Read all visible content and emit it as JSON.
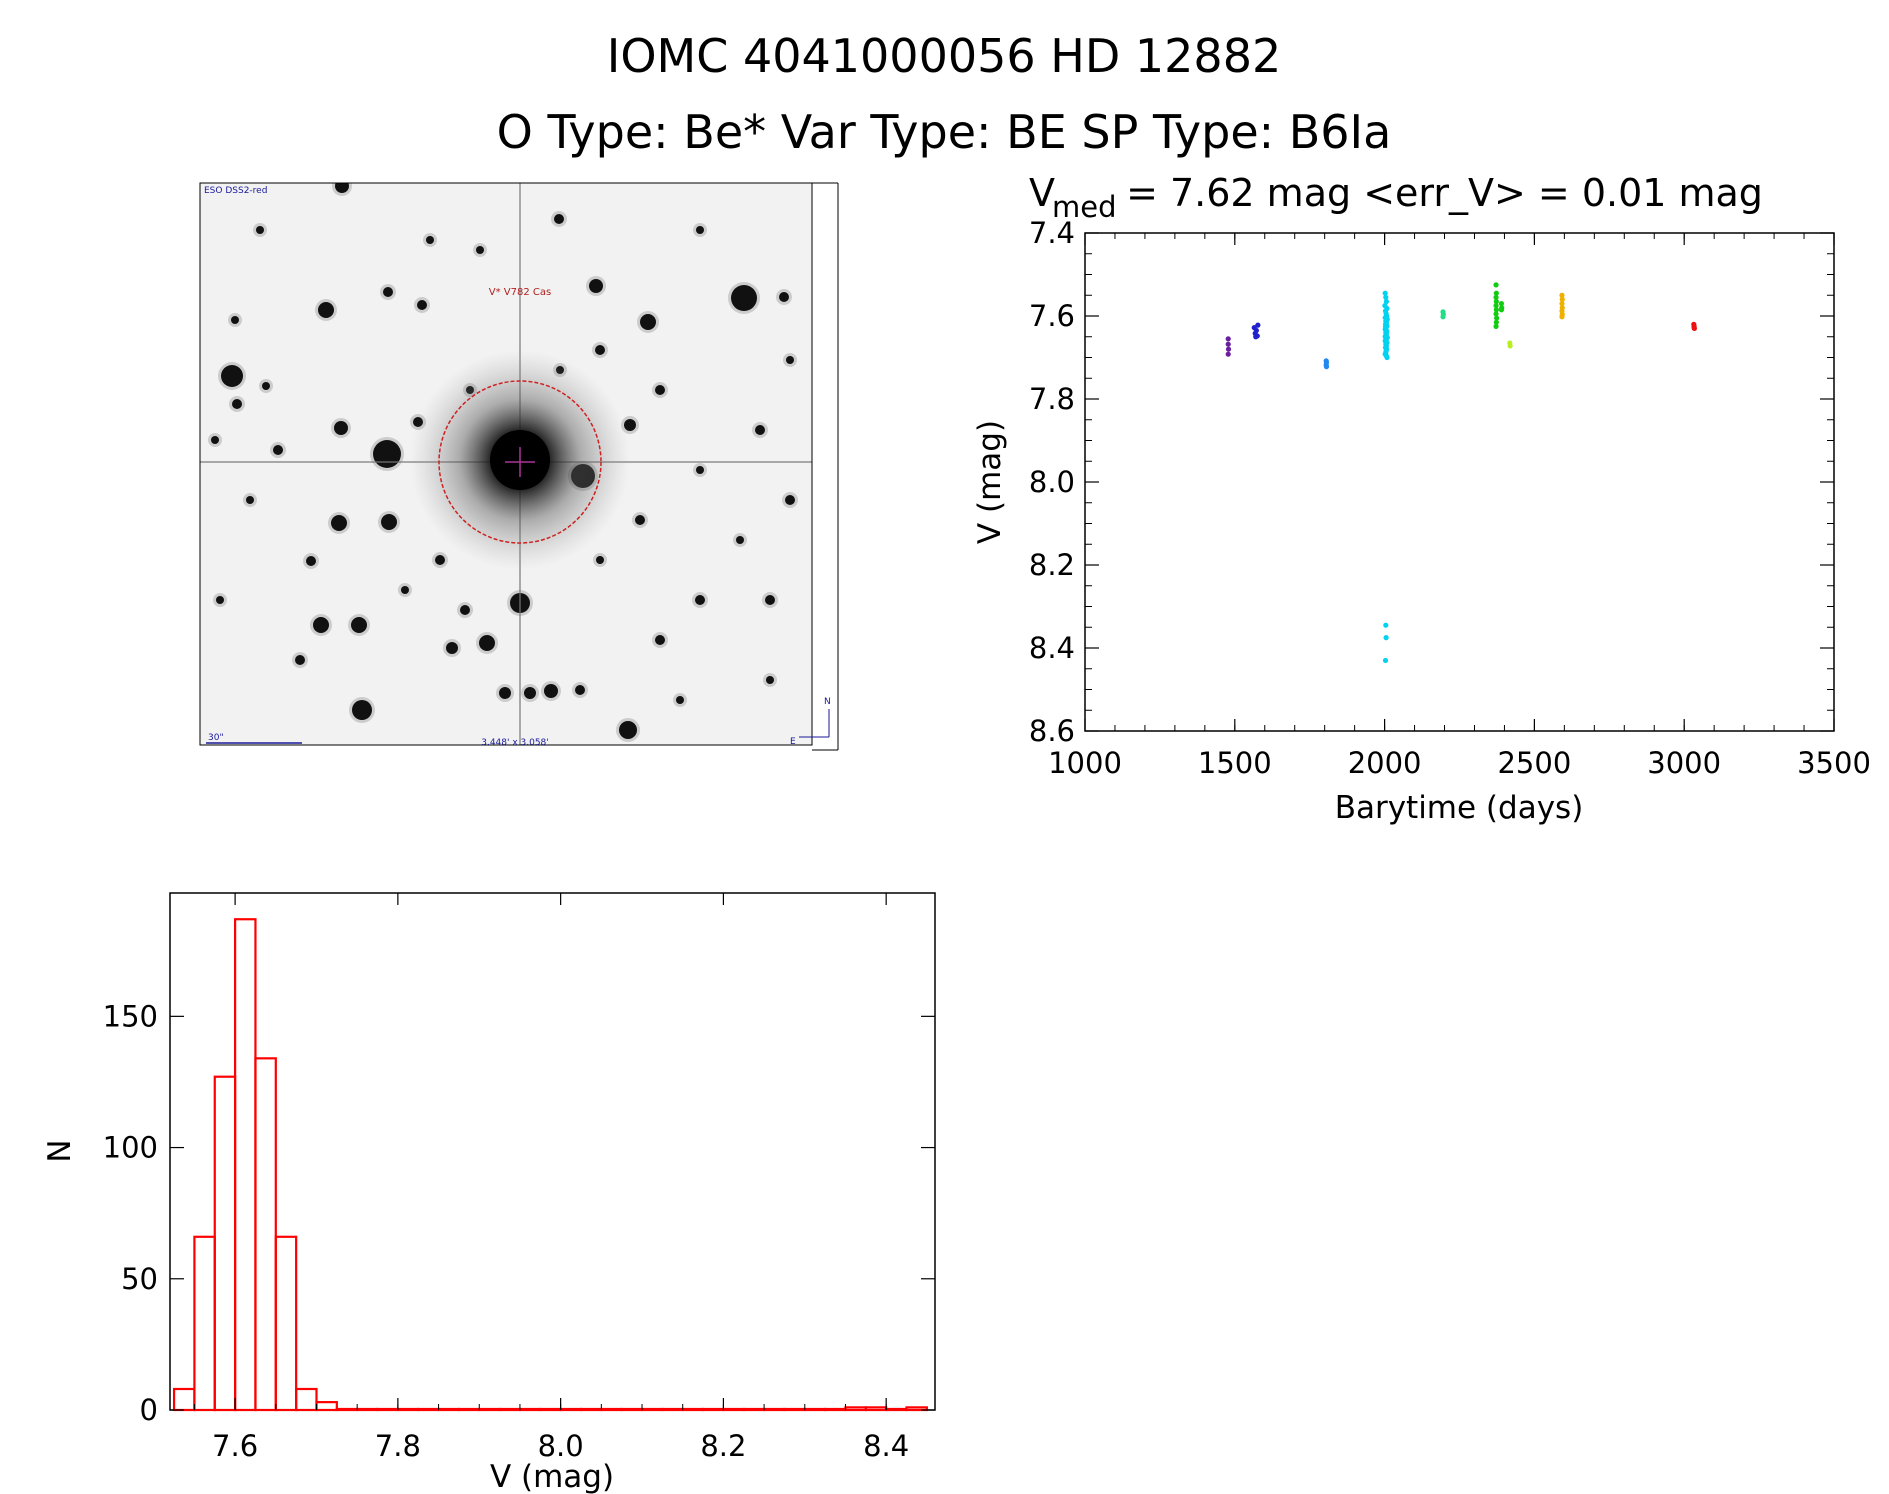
{
  "header": {
    "line1": "IOMC 4041000056   HD  12882",
    "line2": "O Type: Be*  Var Type: BE  SP Type: B6Ia"
  },
  "finder": {
    "survey_label": "ESO DSS2-red",
    "object_label": "V* V782 Cas",
    "scale_label": "30\"",
    "fov_label": "3.448' x 3.058'",
    "north_label": "N",
    "east_label": "E"
  },
  "chart_data": [
    {
      "type": "scatter",
      "title_main": "V",
      "title_sub": "med",
      "title_rest": " = 7.62 mag <err_V> = 0.01 mag",
      "xlabel": "Barytime (days)",
      "ylabel": "V (mag)",
      "xlim": [
        1000,
        3500
      ],
      "ylim": [
        8.6,
        7.4
      ],
      "y_inverted": true,
      "xticks": [
        "1000",
        "1500",
        "2000",
        "2500",
        "3000",
        "3500"
      ],
      "yticks": [
        "7.4",
        "7.6",
        "7.8",
        "8.0",
        "8.2",
        "8.4",
        "8.6"
      ],
      "grid": false,
      "series": [
        {
          "color": "#6a1fa0",
          "x": [
            1478,
            1478,
            1479,
            1478
          ],
          "y": [
            7.655,
            7.668,
            7.68,
            7.692
          ]
        },
        {
          "color": "#2222cc",
          "x": [
            1565,
            1572,
            1568,
            1575,
            1570,
            1577
          ],
          "y": [
            7.628,
            7.635,
            7.642,
            7.648,
            7.65,
            7.622
          ]
        },
        {
          "color": "#2288ee",
          "x": [
            1805,
            1806,
            1805,
            1806
          ],
          "y": [
            7.708,
            7.712,
            7.718,
            7.722
          ]
        },
        {
          "color": "#00d2f0",
          "x": [
            2002,
            2004,
            2006,
            2001,
            2008,
            2003,
            2005,
            2007,
            2002,
            2009,
            2004,
            2006,
            2003,
            2008,
            2005,
            2002,
            2007,
            2004,
            2006,
            2003,
            2009,
            2005,
            2002,
            2008,
            2004,
            2006,
            2003,
            2007,
            2005,
            2004,
            2002,
            2006,
            2008,
            2004,
            2005,
            2003,
            2007,
            2002,
            2006,
            2004,
            2005,
            2003
          ],
          "y": [
            7.545,
            7.555,
            7.565,
            7.575,
            7.582,
            7.588,
            7.594,
            7.6,
            7.604,
            7.608,
            7.612,
            7.616,
            7.62,
            7.624,
            7.628,
            7.632,
            7.636,
            7.64,
            7.644,
            7.648,
            7.652,
            7.656,
            7.66,
            7.664,
            7.668,
            7.672,
            7.676,
            7.68,
            7.684,
            7.688,
            7.692,
            7.696,
            7.7,
            7.604,
            7.614,
            7.626,
            7.638,
            7.65,
            7.662,
            8.345,
            8.375,
            8.43
          ]
        },
        {
          "color": "#22dd88",
          "x": [
            2195,
            2196,
            2195
          ],
          "y": [
            7.59,
            7.596,
            7.602
          ]
        },
        {
          "color": "#11cc11",
          "x": [
            2372,
            2373,
            2372,
            2373,
            2372,
            2373,
            2372,
            2374,
            2373,
            2372,
            2390,
            2391,
            2390
          ],
          "y": [
            7.525,
            7.545,
            7.555,
            7.565,
            7.575,
            7.585,
            7.595,
            7.605,
            7.615,
            7.625,
            7.57,
            7.58,
            7.585
          ]
        },
        {
          "color": "#bbee22",
          "x": [
            2418,
            2419
          ],
          "y": [
            7.665,
            7.672
          ]
        },
        {
          "color": "#f0b000",
          "x": [
            2592,
            2593,
            2592,
            2593,
            2592,
            2593,
            2592
          ],
          "y": [
            7.55,
            7.56,
            7.57,
            7.58,
            7.588,
            7.596,
            7.602
          ]
        },
        {
          "color": "#ee1111",
          "x": [
            3032,
            3033,
            3034,
            3033
          ],
          "y": [
            7.62,
            7.625,
            7.63,
            7.628
          ]
        }
      ]
    },
    {
      "type": "bar",
      "subtype": "histogram",
      "xlabel": "V (mag)",
      "ylabel": "N",
      "xlim": [
        7.52,
        8.46
      ],
      "ylim": [
        0,
        197
      ],
      "xticks": [
        "7.6",
        "7.8",
        "8.0",
        "8.2",
        "8.4"
      ],
      "yticks": [
        "0",
        "50",
        "100",
        "150"
      ],
      "bin_width": 0.025,
      "bin_start": 7.525,
      "counts": [
        8,
        66,
        127,
        187,
        134,
        66,
        8,
        3,
        0,
        0,
        0,
        0,
        0,
        0,
        0,
        0,
        0,
        0,
        0,
        0,
        0,
        0,
        0,
        0,
        0,
        0,
        0,
        0,
        0,
        0,
        0,
        0,
        0,
        1,
        1,
        0,
        1
      ],
      "color": "#ff0000"
    }
  ]
}
